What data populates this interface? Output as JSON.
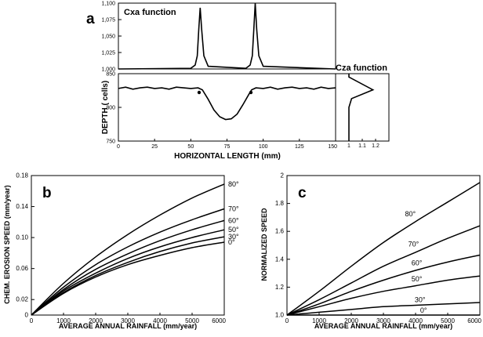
{
  "panels": {
    "a": {
      "letter": "a",
      "function_label": "Cxa  function",
      "right_label": "Cza  function",
      "ylabel": "DEPTH ( cells)",
      "xlabel": "HORIZONTAL  LENGTH (mm)"
    },
    "b": {
      "letter": "b",
      "ylabel": "CHEM.  EROSION  SPEED  (mm/year)",
      "xlabel": "AVERAGE ANNUAL RAINFALL   (mm/year)"
    },
    "c": {
      "letter": "c",
      "ylabel": "NORMALIZED  SPEED",
      "xlabel": "AVERAGE ANNUAL RAINFALL  (mm/year)"
    }
  },
  "chart_data": [
    {
      "id": "a-top",
      "type": "line",
      "title": "Cxa  function",
      "xlabel": "",
      "ylabel": "",
      "xlim": [
        0,
        150
      ],
      "ylim": [
        1.0,
        1.1
      ],
      "yticks": [
        "1,000",
        "1,025",
        "1,050",
        "1,075",
        "1,100"
      ],
      "series": [
        {
          "x": [
            0,
            50,
            53,
            54.5,
            55.5,
            56.5,
            57.5,
            59,
            62,
            88,
            91,
            92.5,
            93.5,
            94.5,
            95.5,
            97,
            100,
            150
          ],
          "y": [
            1.0,
            1.001,
            1.006,
            1.02,
            1.06,
            1.093,
            1.06,
            1.02,
            1.004,
            1.001,
            1.006,
            1.02,
            1.06,
            1.1,
            1.06,
            1.02,
            1.004,
            1.0
          ]
        }
      ]
    },
    {
      "id": "a-bottom",
      "type": "line",
      "xlabel": "HORIZONTAL  LENGTH (mm)",
      "ylabel": "DEPTH ( cells)",
      "xlim": [
        0,
        150
      ],
      "ylim": [
        750,
        850
      ],
      "xticks": [
        "0",
        "25",
        "50",
        "75",
        "100",
        "125",
        "150"
      ],
      "yticks": [
        "750",
        "800",
        "850"
      ],
      "series": [
        {
          "x": [
            0,
            5,
            10,
            15,
            20,
            25,
            30,
            35,
            40,
            45,
            50,
            55,
            58,
            62,
            66,
            70,
            74,
            78,
            82,
            86,
            90,
            92,
            95,
            100,
            105,
            110,
            115,
            120,
            125,
            130,
            135,
            140,
            145,
            150
          ],
          "y": [
            828,
            830,
            827,
            829,
            830,
            828,
            829,
            827,
            830,
            829,
            828,
            829,
            826,
            812,
            796,
            786,
            782,
            783,
            790,
            804,
            819,
            826,
            829,
            828,
            830,
            827,
            829,
            830,
            828,
            829,
            827,
            830,
            828,
            829
          ]
        }
      ]
    },
    {
      "id": "a-right",
      "type": "line",
      "title": "Cza  function",
      "xlim": [
        0.9,
        1.3
      ],
      "ylim": [
        750,
        850
      ],
      "xticks": [
        "1",
        "1.1",
        "1.2"
      ],
      "series": [
        {
          "x": [
            1.0,
            1.0,
            1.02,
            1.18,
            1.0,
            1.0
          ],
          "y": [
            750,
            800,
            813,
            826,
            845,
            850
          ]
        }
      ]
    },
    {
      "id": "b",
      "type": "line",
      "xlabel": "AVERAGE ANNUAL RAINFALL   (mm/year)",
      "ylabel": "CHEM.  EROSION  SPEED  (mm/year)",
      "xlim": [
        0,
        6000
      ],
      "ylim": [
        0,
        0.18
      ],
      "xticks": [
        "0",
        "1000",
        "2000",
        "3000",
        "4000",
        "5000",
        "6000"
      ],
      "yticks": [
        "0",
        "0.02",
        "0.06",
        "0.10",
        "0.14",
        "0.18"
      ],
      "series": [
        {
          "name": "80°",
          "x": [
            0,
            1000,
            2000,
            3000,
            4000,
            5000,
            6000
          ],
          "y": [
            0,
            0.041,
            0.075,
            0.104,
            0.129,
            0.151,
            0.169
          ]
        },
        {
          "name": "70°",
          "x": [
            0,
            1000,
            2000,
            3000,
            4000,
            5000,
            6000
          ],
          "y": [
            0,
            0.036,
            0.065,
            0.088,
            0.107,
            0.123,
            0.137
          ]
        },
        {
          "name": "60°",
          "x": [
            0,
            1000,
            2000,
            3000,
            4000,
            5000,
            6000
          ],
          "y": [
            0,
            0.033,
            0.059,
            0.079,
            0.096,
            0.11,
            0.122
          ]
        },
        {
          "name": "50°",
          "x": [
            0,
            1000,
            2000,
            3000,
            4000,
            5000,
            6000
          ],
          "y": [
            0,
            0.031,
            0.054,
            0.073,
            0.088,
            0.1,
            0.11
          ]
        },
        {
          "name": "30°",
          "x": [
            0,
            1000,
            2000,
            3000,
            4000,
            5000,
            6000
          ],
          "y": [
            0,
            0.029,
            0.051,
            0.068,
            0.082,
            0.093,
            0.101
          ]
        },
        {
          "name": "0°",
          "x": [
            0,
            1000,
            2000,
            3000,
            4000,
            5000,
            6000
          ],
          "y": [
            0,
            0.028,
            0.049,
            0.065,
            0.077,
            0.087,
            0.094
          ]
        }
      ]
    },
    {
      "id": "c",
      "type": "line",
      "xlabel": "AVERAGE ANNUAL RAINFALL  (mm/year)",
      "ylabel": "NORMALIZED  SPEED",
      "xlim": [
        0,
        6000
      ],
      "ylim": [
        1.0,
        2.0
      ],
      "xticks": [
        "0",
        "1000",
        "2000",
        "3000",
        "4000",
        "5000",
        "6000"
      ],
      "yticks": [
        "1.0",
        "1.2",
        "1.4",
        "1.6",
        "1.8",
        "2"
      ],
      "series": [
        {
          "name": "80°",
          "x": [
            0,
            1000,
            2000,
            3000,
            4000,
            5000,
            6000
          ],
          "y": [
            1.0,
            1.17,
            1.35,
            1.52,
            1.67,
            1.81,
            1.95
          ]
        },
        {
          "name": "70°",
          "x": [
            0,
            1000,
            2000,
            3000,
            4000,
            5000,
            6000
          ],
          "y": [
            1.0,
            1.11,
            1.23,
            1.35,
            1.45,
            1.55,
            1.64
          ]
        },
        {
          "name": "60°",
          "x": [
            0,
            1000,
            2000,
            3000,
            4000,
            5000,
            6000
          ],
          "y": [
            1.0,
            1.08,
            1.17,
            1.25,
            1.32,
            1.38,
            1.43
          ]
        },
        {
          "name": "50°",
          "x": [
            0,
            1000,
            2000,
            3000,
            4000,
            5000,
            6000
          ],
          "y": [
            1.0,
            1.06,
            1.12,
            1.17,
            1.21,
            1.25,
            1.28
          ]
        },
        {
          "name": "30°",
          "x": [
            0,
            1000,
            2000,
            3000,
            4000,
            5000,
            6000
          ],
          "y": [
            1.0,
            1.02,
            1.04,
            1.06,
            1.07,
            1.08,
            1.09
          ]
        },
        {
          "name": "0°",
          "x": [
            0,
            1000,
            2000,
            3000,
            4000,
            5000,
            6000
          ],
          "y": [
            1.0,
            1.0,
            1.0,
            1.0,
            1.0,
            1.0,
            1.0
          ]
        }
      ]
    }
  ]
}
